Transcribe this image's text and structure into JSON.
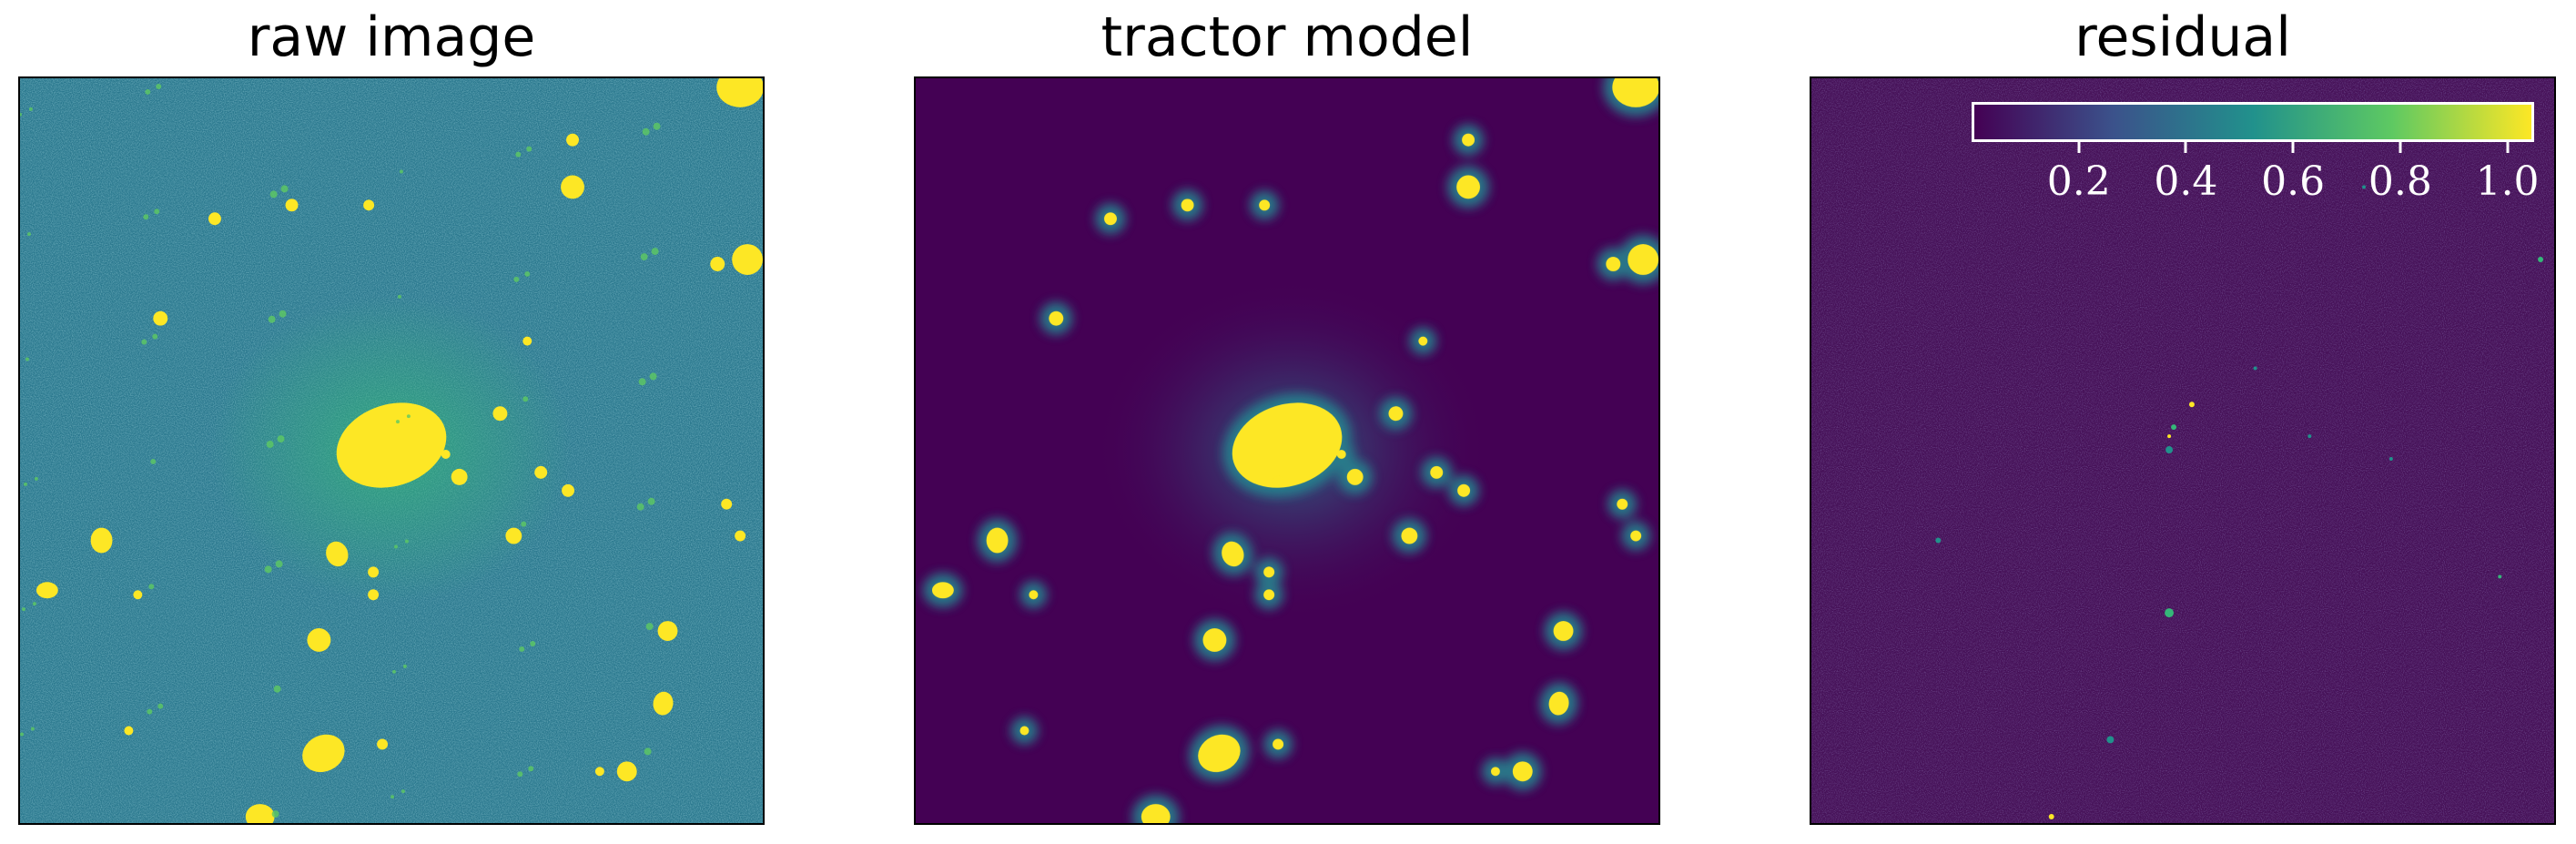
{
  "panels": [
    {
      "title": "raw image",
      "background": "#2a788e"
    },
    {
      "title": "tractor model",
      "background": "#440154"
    },
    {
      "title": "residual",
      "background": "#461158"
    }
  ],
  "colorbar": {
    "ticks": [
      "0.2",
      "0.4",
      "0.6",
      "0.8",
      "1.0"
    ],
    "tick_values": [
      0.2,
      0.4,
      0.6,
      0.8,
      1.0
    ],
    "range": [
      0.0,
      1.05
    ],
    "colormap": [
      "#440154",
      "#3b528b",
      "#21918c",
      "#5ec962",
      "#fde725"
    ]
  },
  "colors": {
    "source": "#fde725",
    "halo": "#35b779",
    "noise_light": "#3fa088",
    "noise_dark": "#30608d"
  }
}
